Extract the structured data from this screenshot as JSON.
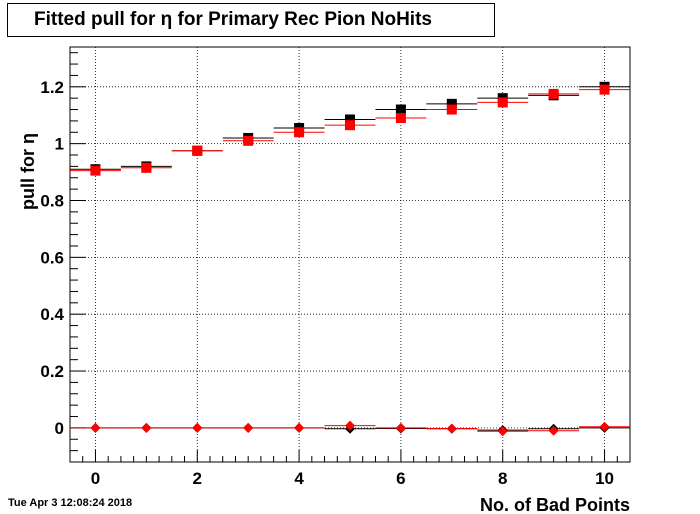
{
  "timestamp": "Tue Apr  3 12:08:24 2018",
  "chart_data": {
    "type": "scatter",
    "title": "Fitted pull for  η for Primary Rec Pion NoHits",
    "xlabel": "No. of Bad Points",
    "ylabel": "pull for  η",
    "xlim": [
      -0.5,
      10.5
    ],
    "ylim": [
      -0.12,
      1.34
    ],
    "x_ticks": [
      0,
      2,
      4,
      6,
      8,
      10
    ],
    "y_ticks": [
      0,
      0.2,
      0.4,
      0.6,
      0.8,
      1,
      1.2
    ],
    "y_tick_labels": [
      "0",
      "0.2",
      "0.4",
      "0.6",
      "0.8",
      "1",
      "1.2"
    ],
    "grid": true,
    "x": [
      0,
      1,
      2,
      3,
      4,
      5,
      6,
      7,
      8,
      9,
      10
    ],
    "series": [
      {
        "marker": "square",
        "color": "#000000",
        "values": [
          0.91,
          0.92,
          0.975,
          1.02,
          1.055,
          1.085,
          1.12,
          1.14,
          1.16,
          1.17,
          1.2
        ]
      },
      {
        "marker": "square",
        "color": "#ff0000",
        "values": [
          0.905,
          0.915,
          0.975,
          1.01,
          1.04,
          1.065,
          1.09,
          1.12,
          1.145,
          1.175,
          1.19
        ]
      },
      {
        "marker": "diamond",
        "color": "#000000",
        "values": [
          0.0,
          0.0,
          0.0,
          0.0,
          0.0,
          -0.003,
          -0.002,
          -0.003,
          -0.008,
          -0.003,
          0.0
        ]
      },
      {
        "marker": "diamond",
        "color": "#ff0000",
        "values": [
          0.0,
          0.0,
          0.0,
          0.0,
          0.0,
          0.008,
          0.0,
          -0.002,
          -0.012,
          -0.01,
          0.004
        ]
      }
    ]
  }
}
